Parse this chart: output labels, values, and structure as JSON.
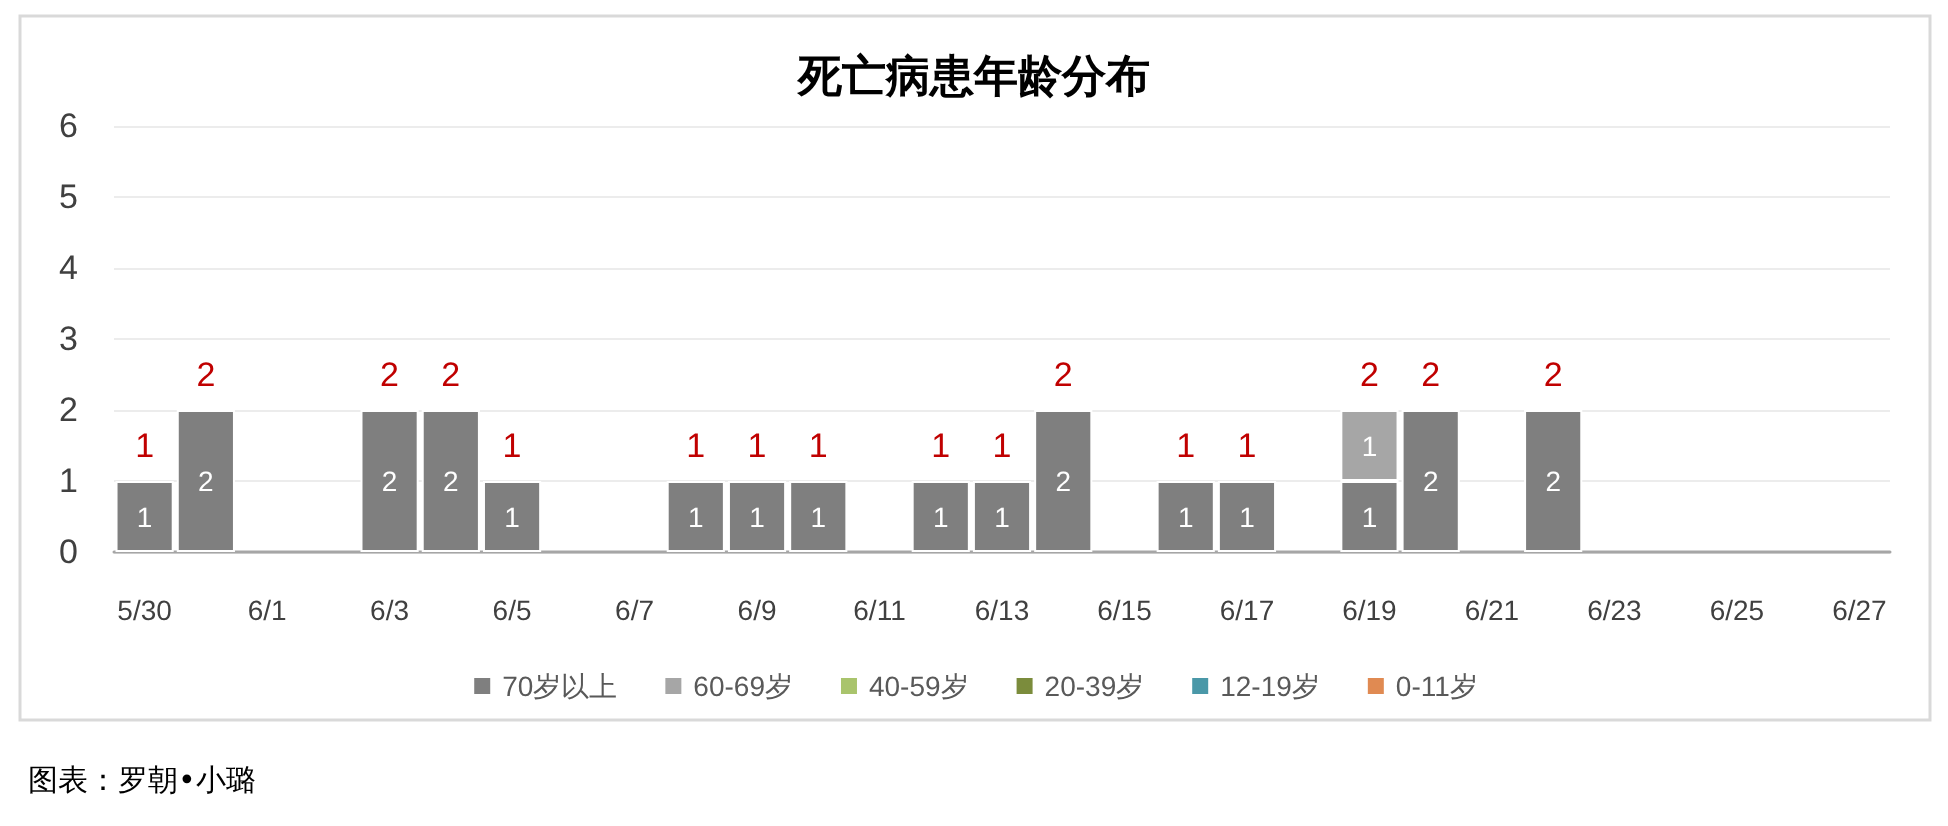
{
  "chart_data": {
    "type": "bar",
    "title": "死亡病患年龄分布",
    "categories": [
      "5/30",
      null,
      "6/1",
      null,
      "6/3",
      null,
      "6/5",
      null,
      "6/7",
      null,
      "6/9",
      null,
      "6/11",
      null,
      "6/13",
      null,
      "6/15",
      null,
      "6/17",
      null,
      "6/19",
      null,
      "6/21",
      null,
      "6/23",
      null,
      "6/25",
      null,
      "6/27"
    ],
    "series": [
      {
        "name": "70岁以上",
        "color": "#7f7f7f",
        "values": [
          1,
          2,
          null,
          null,
          2,
          2,
          1,
          null,
          null,
          1,
          1,
          1,
          null,
          1,
          1,
          2,
          null,
          1,
          1,
          null,
          1,
          2,
          null,
          2,
          null,
          null,
          null,
          null,
          null
        ]
      },
      {
        "name": "60-69岁",
        "color": "#a6a6a6",
        "values": [
          null,
          null,
          null,
          null,
          null,
          null,
          null,
          null,
          null,
          null,
          null,
          null,
          null,
          null,
          null,
          null,
          null,
          null,
          null,
          null,
          1,
          null,
          null,
          null,
          null,
          null,
          null,
          null,
          null
        ]
      },
      {
        "name": "40-59岁",
        "color": "#a9c46c",
        "values": [
          null,
          null,
          null,
          null,
          null,
          null,
          null,
          null,
          null,
          null,
          null,
          null,
          null,
          null,
          null,
          null,
          null,
          null,
          null,
          null,
          null,
          null,
          null,
          null,
          null,
          null,
          null,
          null,
          null
        ]
      },
      {
        "name": "20-39岁",
        "color": "#7b8c3c",
        "values": [
          null,
          null,
          null,
          null,
          null,
          null,
          null,
          null,
          null,
          null,
          null,
          null,
          null,
          null,
          null,
          null,
          null,
          null,
          null,
          null,
          null,
          null,
          null,
          null,
          null,
          null,
          null,
          null,
          null
        ]
      },
      {
        "name": "12-19岁",
        "color": "#4a98a8",
        "values": [
          null,
          null,
          null,
          null,
          null,
          null,
          null,
          null,
          null,
          null,
          null,
          null,
          null,
          null,
          null,
          null,
          null,
          null,
          null,
          null,
          null,
          null,
          null,
          null,
          null,
          null,
          null,
          null,
          null
        ]
      },
      {
        "name": "0-11岁",
        "color": "#e08a52",
        "values": [
          null,
          null,
          null,
          null,
          null,
          null,
          null,
          null,
          null,
          null,
          null,
          null,
          null,
          null,
          null,
          null,
          null,
          null,
          null,
          null,
          null,
          null,
          null,
          null,
          null,
          null,
          null,
          null,
          null
        ]
      }
    ],
    "stacked": true,
    "ylim": [
      0,
      6
    ],
    "yticks": [
      0,
      1,
      2,
      3,
      4,
      5,
      6
    ],
    "grid": "y",
    "legend": "bottom",
    "data_labels": true,
    "totals": [
      "1",
      "2",
      null,
      null,
      "2",
      "2",
      "1",
      null,
      null,
      "1",
      "1",
      "1",
      null,
      "1",
      "1",
      "2",
      null,
      "1",
      "1",
      null,
      "2",
      "2",
      null,
      "2",
      null,
      null,
      null,
      null,
      null
    ],
    "annotations": [
      "图表：罗朝•小璐"
    ]
  }
}
